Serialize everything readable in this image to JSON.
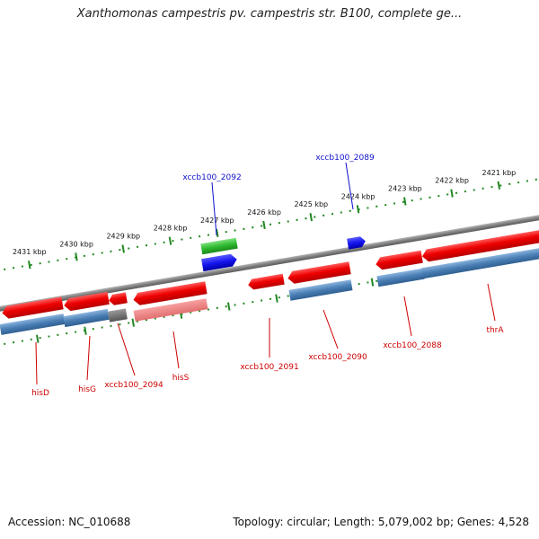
{
  "title": "Xanthomonas campestris pv. campestris str. B100, complete ge...",
  "footer": {
    "accession": "Accession: NC_010688",
    "topology": "Topology: circular; Length: 5,079,002 bp; Genes: 4,528"
  },
  "ruler": {
    "ticks": [
      "2421 kbp",
      "2422 kbp",
      "2423 kbp",
      "2424 kbp",
      "2425 kbp",
      "2426 kbp",
      "2427 kbp",
      "2428 kbp",
      "2429 kbp",
      "2430 kbp",
      "2431 kbp"
    ]
  },
  "genes": {
    "top": [
      {
        "name": "xccb100_2092",
        "color": "#1010cc"
      },
      {
        "name": "xccb100_2089",
        "color": "#1010cc"
      }
    ],
    "bottom": [
      {
        "name": "thrA",
        "color": "#cc0000"
      },
      {
        "name": "xccb100_2088",
        "color": "#cc0000"
      },
      {
        "name": "xccb100_2090",
        "color": "#cc0000"
      },
      {
        "name": "xccb100_2091",
        "color": "#cc0000"
      },
      {
        "name": "hisS",
        "color": "#cc0000"
      },
      {
        "name": "xccb100_2094",
        "color": "#cc0000"
      },
      {
        "name": "hisG",
        "color": "#cc0000"
      },
      {
        "name": "hisD",
        "color": "#cc0000"
      }
    ]
  },
  "colors": {
    "cds_forward": "#3232dd",
    "cds_reverse": "#e80000",
    "rrna_green": "#2fba2f",
    "gene_blue": "#4a7fb5",
    "pseudogene_gray": "#707070",
    "backbone": "#808080",
    "tick_green": "#228822"
  }
}
